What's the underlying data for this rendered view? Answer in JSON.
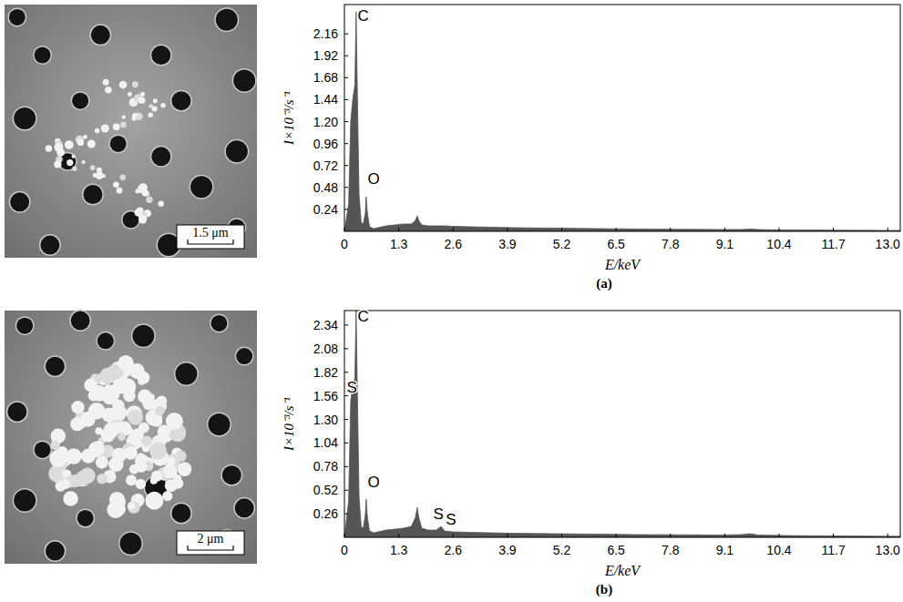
{
  "chart_data": [
    {
      "type": "area",
      "panel_label": "(a)",
      "scale_bar": "1.5 μm",
      "x_label": "E/keV",
      "y_label": "I×10⁻³/s⁻¹",
      "xlim": [
        0,
        13.3
      ],
      "ylim": [
        0,
        2.48
      ],
      "xticks": [
        0,
        1.3,
        2.6,
        3.9,
        5.2,
        6.5,
        7.8,
        9.1,
        10.4,
        11.7,
        {
          "value": 13,
          "label": "13.0"
        }
      ],
      "yticks": [
        0.24,
        0.48,
        0.72,
        0.96,
        {
          "value": 1.2,
          "label": "1.20"
        },
        1.44,
        1.68,
        1.92,
        2.16
      ],
      "x": [
        0,
        0.1,
        0.15,
        0.2,
        0.25,
        0.28,
        0.31,
        0.35,
        0.4,
        0.45,
        0.5,
        0.52,
        0.55,
        0.6,
        0.7,
        0.8,
        1.0,
        1.2,
        1.4,
        1.6,
        1.7,
        1.74,
        1.78,
        1.85,
        2.0,
        2.2,
        2.31,
        2.4,
        2.6,
        3.0,
        3.5,
        4,
        5,
        6,
        7,
        8,
        9,
        9.5,
        9.7,
        9.9,
        10.5,
        11,
        12,
        13,
        13.3
      ],
      "series": [
        {
          "color": "#555555",
          "values": [
            0,
            0.3,
            1.2,
            1.45,
            1.6,
            2.4,
            1.5,
            0.4,
            0.1,
            0.08,
            0.2,
            0.38,
            0.2,
            0.05,
            0.03,
            0.04,
            0.06,
            0.07,
            0.08,
            0.08,
            0.12,
            0.17,
            0.12,
            0.07,
            0.06,
            0.06,
            0.06,
            0.06,
            0.055,
            0.05,
            0.045,
            0.04,
            0.035,
            0.03,
            0.025,
            0.022,
            0.02,
            0.02,
            0.025,
            0.02,
            0.015,
            0.015,
            0.012,
            0.01,
            0.01
          ]
        }
      ],
      "annotations": [
        {
          "text": "C",
          "x": 0.45,
          "y": 2.3
        },
        {
          "text": "O",
          "x": 0.7,
          "y": 0.52
        }
      ]
    },
    {
      "type": "area",
      "panel_label": "(b)",
      "scale_bar": "2 μm",
      "x_label": "E/keV",
      "y_label": "I×10⁻³/s⁻¹",
      "xlim": [
        0,
        13.3
      ],
      "ylim": [
        0,
        2.5
      ],
      "xticks": [
        0,
        1.3,
        2.6,
        3.9,
        5.2,
        6.5,
        7.8,
        9.1,
        10.4,
        11.7,
        {
          "value": 13,
          "label": "13.0"
        }
      ],
      "yticks": [
        0.26,
        0.52,
        0.78,
        1.04,
        {
          "value": 1.3,
          "label": "1.30"
        },
        1.56,
        1.82,
        2.08,
        2.34
      ],
      "x": [
        0,
        0.1,
        0.15,
        0.2,
        0.25,
        0.28,
        0.31,
        0.35,
        0.4,
        0.45,
        0.5,
        0.52,
        0.55,
        0.6,
        0.7,
        0.8,
        1.0,
        1.2,
        1.4,
        1.6,
        1.7,
        1.74,
        1.78,
        1.85,
        2.0,
        2.2,
        2.31,
        2.4,
        2.6,
        3.0,
        3.5,
        4,
        5,
        6,
        7,
        8,
        9,
        9.5,
        9.7,
        9.9,
        10.5,
        11,
        12,
        13,
        13.3
      ],
      "series": [
        {
          "color": "#555555",
          "values": [
            0,
            0.4,
            1.5,
            1.7,
            1.75,
            2.5,
            1.6,
            0.45,
            0.12,
            0.1,
            0.25,
            0.42,
            0.22,
            0.07,
            0.05,
            0.06,
            0.08,
            0.09,
            0.1,
            0.12,
            0.22,
            0.33,
            0.22,
            0.1,
            0.08,
            0.08,
            0.12,
            0.07,
            0.06,
            0.055,
            0.05,
            0.045,
            0.04,
            0.035,
            0.03,
            0.028,
            0.025,
            0.03,
            0.04,
            0.025,
            0.02,
            0.018,
            0.015,
            0.012,
            0.012
          ]
        }
      ],
      "annotations": [
        {
          "text": "C",
          "x": 0.45,
          "y": 2.38
        },
        {
          "text": "S",
          "x": 0.18,
          "y": 1.6
        },
        {
          "text": "O",
          "x": 0.7,
          "y": 0.55
        },
        {
          "text": "S",
          "x": 2.25,
          "y": 0.2
        },
        {
          "text": "S",
          "x": 2.55,
          "y": 0.14
        }
      ]
    }
  ]
}
